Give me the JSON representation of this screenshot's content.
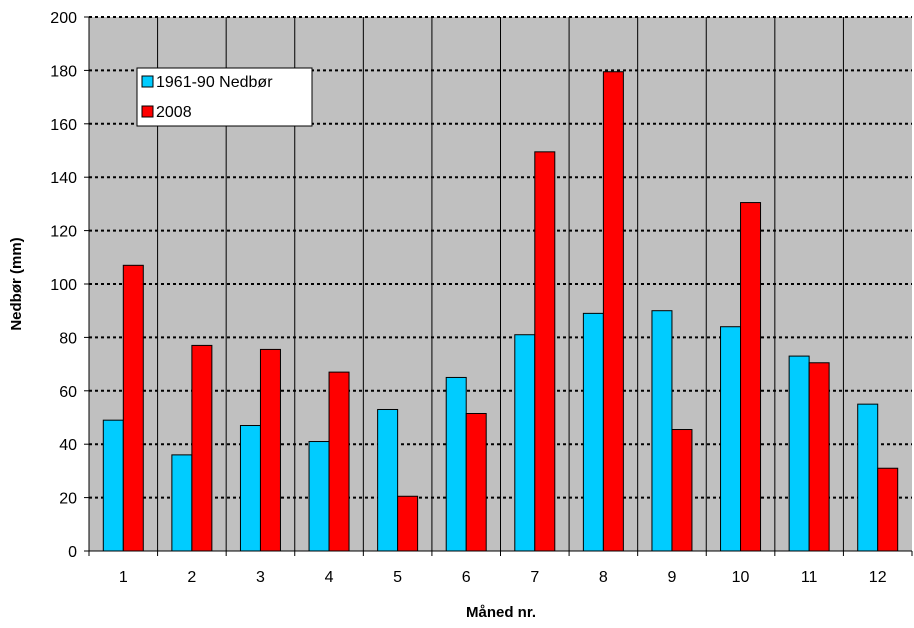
{
  "chart_data": {
    "type": "bar",
    "title": "",
    "xlabel": "Måned nr.",
    "ylabel": "Nedbør (mm)",
    "ylim": [
      0,
      200
    ],
    "yticks": [
      0,
      20,
      40,
      60,
      80,
      100,
      120,
      140,
      160,
      180,
      200
    ],
    "grid": "horizontal dotted",
    "legend_position": "top-left",
    "categories": [
      "1",
      "2",
      "3",
      "4",
      "5",
      "6",
      "7",
      "8",
      "9",
      "10",
      "11",
      "12"
    ],
    "series": [
      {
        "name": "1961-90 Nedbør",
        "color": "#00ccff",
        "values": [
          49,
          36,
          47,
          41,
          53,
          65,
          81,
          89,
          90,
          84,
          73,
          55
        ]
      },
      {
        "name": "2008",
        "color": "#ff0000",
        "values": [
          107,
          77,
          75.5,
          67,
          20.5,
          51.5,
          149.5,
          179.5,
          45.5,
          130.5,
          70.5,
          31
        ]
      }
    ],
    "plot_background": "#c0c0c0"
  }
}
